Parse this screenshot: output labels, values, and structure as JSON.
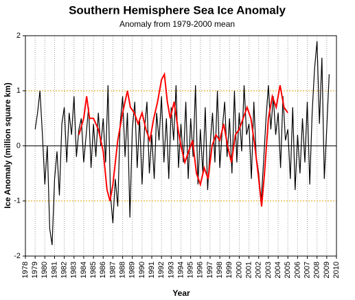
{
  "chart_data": {
    "type": "line",
    "title": "Southern Hemisphere Sea Ice Anomaly",
    "subtitle": "Anomaly from 1979-2000 mean",
    "x_label": "Year",
    "y_label": "Ice Anomaly (million square km)",
    "xlim": [
      1978,
      2010
    ],
    "ylim": [
      -2,
      2
    ],
    "xticks": [
      1978,
      1979,
      1980,
      1981,
      1982,
      1983,
      1984,
      1985,
      1986,
      1987,
      1988,
      1989,
      1990,
      1991,
      1992,
      1993,
      1994,
      1995,
      1996,
      1997,
      1998,
      1999,
      2000,
      2001,
      2002,
      2003,
      2004,
      2005,
      2006,
      2007,
      2008,
      2009,
      2010
    ],
    "yticks": [
      -2,
      -1,
      0,
      1,
      2
    ],
    "grid": true,
    "series": [
      {
        "color": "#000000",
        "x": [
          1979,
          1979.25,
          1979.5,
          1979.75,
          1980,
          1980.25,
          1980.5,
          1980.75,
          1981,
          1981.25,
          1981.5,
          1981.75,
          1982,
          1982.25,
          1982.5,
          1982.75,
          1983,
          1983.25,
          1983.5,
          1983.75,
          1984,
          1984.25,
          1984.5,
          1984.75,
          1985,
          1985.25,
          1985.5,
          1985.75,
          1986,
          1986.25,
          1986.5,
          1986.75,
          1987,
          1987.25,
          1987.5,
          1987.75,
          1988,
          1988.25,
          1988.5,
          1988.75,
          1989,
          1989.25,
          1989.5,
          1989.75,
          1990,
          1990.25,
          1990.5,
          1990.75,
          1991,
          1991.25,
          1991.5,
          1991.75,
          1992,
          1992.25,
          1992.5,
          1992.75,
          1993,
          1993.25,
          1993.5,
          1993.75,
          1994,
          1994.25,
          1994.5,
          1994.75,
          1995,
          1995.25,
          1995.5,
          1995.75,
          1996,
          1996.25,
          1996.5,
          1996.75,
          1997,
          1997.25,
          1997.5,
          1997.75,
          1998,
          1998.25,
          1998.5,
          1998.75,
          1999,
          1999.25,
          1999.5,
          1999.75,
          2000,
          2000.25,
          2000.5,
          2000.75,
          2001,
          2001.25,
          2001.5,
          2001.75,
          2002,
          2002.25,
          2002.5,
          2002.75,
          2003,
          2003.25,
          2003.5,
          2003.75,
          2004,
          2004.25,
          2004.5,
          2004.75,
          2005,
          2005.25,
          2005.5,
          2005.75,
          2006,
          2006.25,
          2006.5,
          2006.75,
          2007,
          2007.25,
          2007.5,
          2007.75,
          2008,
          2008.25,
          2008.5,
          2008.75,
          2009,
          2009.25
        ],
        "values": [
          0.3,
          0.6,
          1.0,
          0.2,
          -0.7,
          0.0,
          -1.5,
          -1.8,
          -0.6,
          -0.1,
          -0.9,
          0.4,
          0.7,
          -0.3,
          0.6,
          0.2,
          0.9,
          -0.2,
          0.3,
          0.5,
          -0.3,
          0.2,
          0.7,
          -0.4,
          0.4,
          -0.2,
          0.6,
          0.0,
          0.5,
          -0.3,
          1.1,
          -0.9,
          -1.4,
          -0.6,
          -1.1,
          0.4,
          0.9,
          -0.2,
          0.6,
          -1.3,
          0.3,
          0.8,
          -0.4,
          0.5,
          -0.7,
          0.3,
          0.8,
          -0.5,
          0.2,
          -0.6,
          0.6,
          0.1,
          0.9,
          -0.3,
          0.5,
          -0.6,
          0.7,
          0.1,
          1.1,
          -0.4,
          0.4,
          -0.3,
          0.8,
          -0.6,
          0.5,
          -0.2,
          1.1,
          -0.7,
          0.3,
          -0.5,
          0.7,
          -0.8,
          0.0,
          0.6,
          -0.3,
          1.0,
          -0.4,
          0.3,
          0.8,
          -0.2,
          0.5,
          -0.5,
          1.0,
          -0.3,
          0.6,
          -0.1,
          1.1,
          0.2,
          0.4,
          -0.6,
          0.8,
          -0.2,
          -0.5,
          -1.0,
          -0.3,
          0.5,
          1.1,
          0.3,
          0.9,
          0.2,
          0.6,
          -0.4,
          0.9,
          0.1,
          0.3,
          -0.6,
          0.7,
          -0.8,
          0.2,
          -0.5,
          0.5,
          -0.3,
          0.8,
          -0.7,
          0.6,
          1.4,
          1.9,
          0.4,
          1.6,
          -0.6,
          0.3,
          1.3
        ]
      },
      {
        "color": "#ff0000",
        "x": [
          1983.5,
          1984,
          1984.3,
          1984.6,
          1985,
          1985.5,
          1986,
          1986.4,
          1986.7,
          1987,
          1987.5,
          1988,
          1988.5,
          1988.8,
          1989.2,
          1989.6,
          1990,
          1990.4,
          1990.8,
          1991.2,
          1991.6,
          1992,
          1992.3,
          1992.6,
          1992.9,
          1993.3,
          1993.7,
          1994,
          1994.4,
          1994.8,
          1995.2,
          1995.6,
          1996,
          1996.4,
          1996.8,
          1997.2,
          1997.6,
          1998,
          1998.4,
          1998.8,
          1999.2,
          1999.6,
          2000,
          2000.4,
          2000.8,
          2001.2,
          2001.6,
          2002,
          2002.3,
          2002.6,
          2003,
          2003.4,
          2003.8,
          2004.2,
          2004.6,
          2005
        ],
        "values": [
          0.2,
          0.5,
          0.9,
          0.5,
          0.5,
          0.3,
          -0.1,
          -0.8,
          -1.0,
          -0.7,
          0.1,
          0.6,
          1.0,
          0.7,
          0.6,
          0.4,
          0.6,
          0.3,
          0.1,
          0.5,
          0.8,
          1.2,
          1.3,
          0.8,
          0.5,
          0.8,
          0.3,
          0.0,
          -0.3,
          -0.1,
          0.1,
          -0.5,
          -0.7,
          -0.4,
          -0.6,
          0.0,
          0.2,
          0.1,
          0.4,
          0.0,
          -0.3,
          0.2,
          0.3,
          0.5,
          0.7,
          0.5,
          0.0,
          -0.6,
          -1.1,
          -0.5,
          0.5,
          0.9,
          0.7,
          1.1,
          0.7,
          0.6
        ]
      }
    ]
  }
}
